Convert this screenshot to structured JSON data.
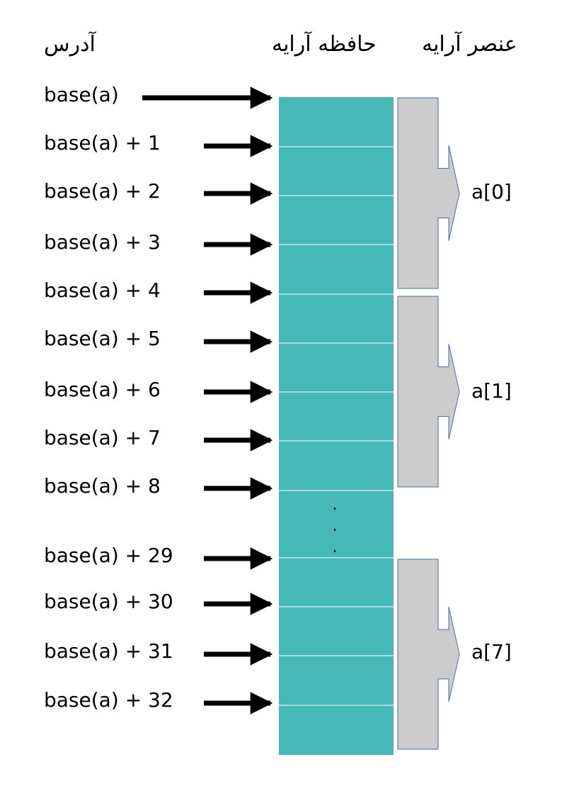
{
  "headers": {
    "address": "آدرس",
    "array_memory": "حافظه آرایه",
    "array_element": "عنصر آرایه"
  },
  "addresses": [
    "base(a)",
    "base(a) + 1",
    "base(a) + 2",
    "base(a) + 3",
    "base(a) + 4",
    "base(a) + 5",
    "base(a) + 6",
    "base(a) + 7",
    "base(a) + 8",
    "base(a) + 29",
    "base(a) + 30",
    "base(a) + 31",
    "base(a) + 32"
  ],
  "ellipsis": ".",
  "elements": [
    "a[0]",
    "a[1]",
    "a[7]"
  ],
  "colors": {
    "memory_cell": "#47b8b8",
    "cell_divider": "#ffffff",
    "element_block": "#cccccc",
    "element_outline": "#4a6fa5",
    "arrow": "#000000"
  }
}
